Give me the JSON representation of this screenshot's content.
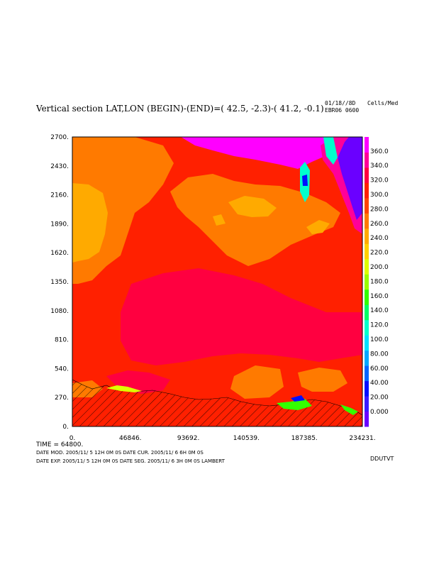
{
  "header": {
    "title": "Vertical section LAT,LON (BEGIN)-(END)=( 42.5, -2.3)-( 41.2, -0.1)",
    "date": "01/18//8D",
    "code": "EBR06 0600",
    "units": "Cells/Med"
  },
  "footer": {
    "time_label": "TIME =   64800.",
    "line1": "DATE MOD. 2005/11/ 5  12H 0M 0S   DATE CUR. 2005/11/ 6   6H 0M 0S",
    "line2": "DATE EXP. 2005/11/ 5  12H 0M 0S   DATE SEG. 2005/11/ 6   3H 0M 0S   LAMBERT",
    "variable": "DDUTVT"
  },
  "chart_data": {
    "type": "heatmap",
    "title": "Vertical section LAT,LON (BEGIN)-(END)=( 42.5, -2.3)-( 41.2, -0.1)",
    "x_ticks": [
      "0.",
      "46846.",
      "93692.",
      "140539.",
      "187385.",
      "234231."
    ],
    "y_ticks": [
      "0.",
      "270.",
      "540.",
      "810.",
      "1080.",
      "1350.",
      "1620.",
      "1890.",
      "2160.",
      "2430.",
      "2700."
    ],
    "xlim": [
      0,
      234231
    ],
    "ylim": [
      0,
      2700
    ],
    "colorbar": {
      "labels": [
        "0.000",
        "20.00",
        "40.00",
        "60.00",
        "80.00",
        "100.0",
        "120.0",
        "140.0",
        "160.0",
        "180.0",
        "200.0",
        "220.0",
        "240.0",
        "260.0",
        "280.0",
        "300.0",
        "320.0",
        "340.0",
        "360.0"
      ],
      "colors": [
        "#6a00ff",
        "#3a1cff",
        "#0010ff",
        "#0066ff",
        "#00a8ff",
        "#00e0ff",
        "#00ffcc",
        "#00ff66",
        "#33ff00",
        "#99ff00",
        "#ddff00",
        "#ffd000",
        "#ffaa00",
        "#ff7a00",
        "#ff4400",
        "#ff2000",
        "#ff0040",
        "#ff0099",
        "#ff00ff"
      ]
    },
    "field_regions": [
      {
        "name": "background",
        "color": "#ff2000"
      },
      {
        "name": "upper-left orange",
        "color": "#ff7a00"
      },
      {
        "name": "left yellow",
        "color": "#ffaa00"
      },
      {
        "name": "central orange",
        "color": "#ff7a00"
      },
      {
        "name": "central yellow",
        "color": "#ffaa00"
      },
      {
        "name": "center crimson",
        "color": "#ff0040"
      },
      {
        "name": "top magenta",
        "color": "#ff00ff"
      },
      {
        "name": "top-right pink",
        "color": "#ff0099"
      },
      {
        "name": "top-right purple",
        "color": "#6a00ff"
      },
      {
        "name": "narrow column",
        "color": "#00ffcc"
      }
    ]
  }
}
